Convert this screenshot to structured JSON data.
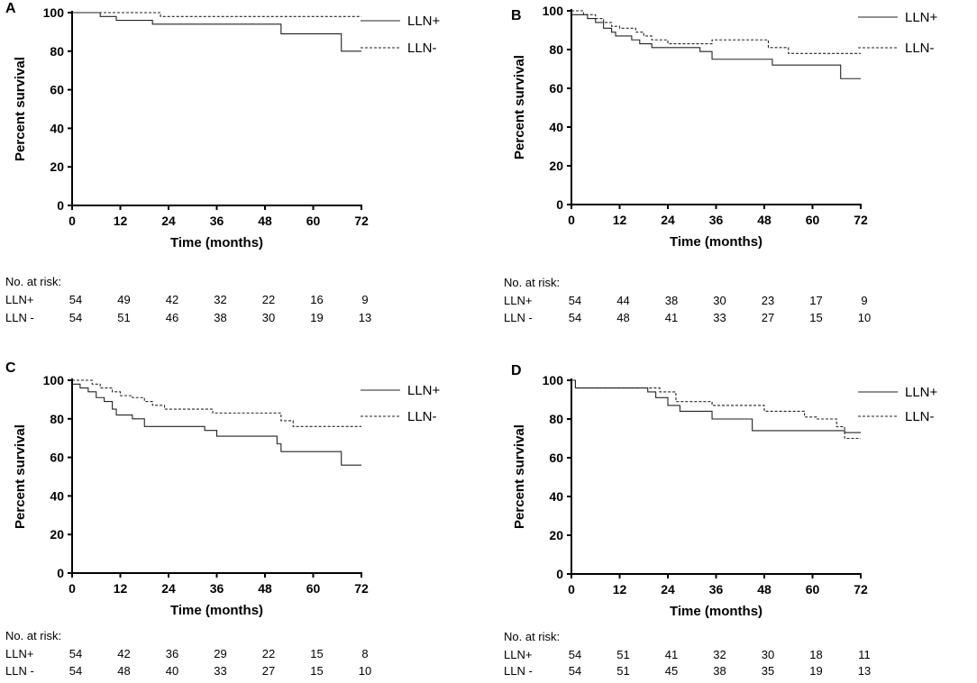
{
  "chart_data": [
    {
      "panel": "A",
      "type": "line",
      "xlabel": "Time (months)",
      "ylabel": "Percent survival",
      "xlim": [
        0,
        72
      ],
      "ylim": [
        0,
        100
      ],
      "xticks": [
        "0",
        "12",
        "24",
        "36",
        "48",
        "60",
        "72"
      ],
      "yticks": [
        "0",
        "20",
        "40",
        "60",
        "80",
        "100"
      ],
      "legend": "right",
      "series": [
        {
          "name": "LLN+",
          "style": "solid",
          "x": [
            0,
            7,
            11,
            20,
            52,
            67,
            72
          ],
          "y": [
            100,
            98,
            96,
            94,
            89,
            80,
            80
          ]
        },
        {
          "name": "LLN-",
          "style": "dashed",
          "x": [
            0,
            7,
            22,
            72
          ],
          "y": [
            100,
            100,
            98,
            98
          ]
        }
      ],
      "risk_table": {
        "title": "No. at risk:",
        "rows": [
          {
            "label": "LLN+",
            "values": [
              "54",
              "49",
              "42",
              "32",
              "22",
              "16",
              "9"
            ]
          },
          {
            "label": "LLN -",
            "values": [
              "54",
              "51",
              "46",
              "38",
              "30",
              "19",
              "13"
            ]
          }
        ]
      }
    },
    {
      "panel": "B",
      "type": "line",
      "xlabel": "Time (months)",
      "ylabel": "Percent survival",
      "xlim": [
        0,
        72
      ],
      "ylim": [
        0,
        100
      ],
      "xticks": [
        "0",
        "12",
        "24",
        "36",
        "48",
        "60",
        "72"
      ],
      "yticks": [
        "0",
        "20",
        "40",
        "60",
        "80",
        "100"
      ],
      "legend": "right",
      "series": [
        {
          "name": "LLN+",
          "style": "solid",
          "x": [
            0,
            2,
            4,
            6,
            8,
            10,
            11,
            15,
            17,
            20,
            32,
            35,
            50,
            67,
            72
          ],
          "y": [
            98,
            98,
            96,
            94,
            91,
            89,
            87,
            85,
            83,
            81,
            79,
            75,
            72,
            65,
            65
          ]
        },
        {
          "name": "LLN-",
          "style": "dashed",
          "x": [
            0,
            3,
            6,
            8,
            10,
            12,
            16,
            18,
            20,
            24,
            35,
            49,
            54,
            72
          ],
          "y": [
            100,
            98,
            96,
            94,
            92,
            91,
            89,
            87,
            85,
            83,
            85,
            81,
            78,
            78
          ]
        }
      ],
      "risk_table": {
        "title": "No. at risk:",
        "rows": [
          {
            "label": "LLN+",
            "values": [
              "54",
              "44",
              "38",
              "30",
              "23",
              "17",
              "9"
            ]
          },
          {
            "label": "LLN -",
            "values": [
              "54",
              "48",
              "41",
              "33",
              "27",
              "15",
              "10"
            ]
          }
        ]
      }
    },
    {
      "panel": "C",
      "type": "line",
      "xlabel": "Time (months)",
      "ylabel": "Percent survival",
      "xlim": [
        0,
        72
      ],
      "ylim": [
        0,
        100
      ],
      "xticks": [
        "0",
        "12",
        "24",
        "36",
        "48",
        "60",
        "72"
      ],
      "yticks": [
        "0",
        "20",
        "40",
        "60",
        "80",
        "100"
      ],
      "legend": "right",
      "series": [
        {
          "name": "LLN+",
          "style": "solid",
          "x": [
            0,
            2,
            4,
            6,
            8,
            10,
            11,
            15,
            18,
            33,
            36,
            51,
            52,
            67,
            72
          ],
          "y": [
            98,
            96,
            94,
            91,
            89,
            85,
            82,
            80,
            76,
            74,
            71,
            67,
            63,
            56,
            56
          ]
        },
        {
          "name": "LLN-",
          "style": "dashed",
          "x": [
            0,
            5,
            7,
            10,
            12,
            15,
            18,
            20,
            23,
            35,
            52,
            55,
            72
          ],
          "y": [
            100,
            98,
            96,
            94,
            92,
            91,
            89,
            87,
            85,
            83,
            79,
            76,
            76
          ]
        }
      ],
      "risk_table": {
        "title": "No. at risk:",
        "rows": [
          {
            "label": "LLN+",
            "values": [
              "54",
              "42",
              "36",
              "29",
              "22",
              "15",
              "8"
            ]
          },
          {
            "label": "LLN -",
            "values": [
              "54",
              "48",
              "40",
              "33",
              "27",
              "15",
              "10"
            ]
          }
        ]
      }
    },
    {
      "panel": "D",
      "type": "line",
      "xlabel": "Time (months)",
      "ylabel": "Percent survival",
      "xlim": [
        0,
        72
      ],
      "ylim": [
        0,
        100
      ],
      "xticks": [
        "0",
        "12",
        "24",
        "36",
        "48",
        "60",
        "72"
      ],
      "yticks": [
        "0",
        "20",
        "40",
        "60",
        "80",
        "100"
      ],
      "legend": "right",
      "series": [
        {
          "name": "LLN+",
          "style": "solid",
          "x": [
            0,
            1,
            15,
            19,
            21,
            24,
            27,
            35,
            45,
            68,
            72
          ],
          "y": [
            100,
            96,
            96,
            94,
            91,
            87,
            84,
            80,
            74,
            73,
            73
          ]
        },
        {
          "name": "LLN-",
          "style": "dashed",
          "x": [
            0,
            1,
            19,
            22,
            26,
            35,
            48,
            58,
            61,
            66,
            68,
            72
          ],
          "y": [
            100,
            96,
            96,
            94,
            89,
            87,
            84,
            81,
            80,
            76,
            70,
            70
          ]
        }
      ],
      "risk_table": {
        "title": "No. at risk:",
        "rows": [
          {
            "label": "LLN+",
            "values": [
              "54",
              "51",
              "41",
              "32",
              "30",
              "18",
              "11"
            ]
          },
          {
            "label": "LLN -",
            "values": [
              "54",
              "51",
              "45",
              "38",
              "35",
              "19",
              "13"
            ]
          }
        ]
      }
    }
  ]
}
